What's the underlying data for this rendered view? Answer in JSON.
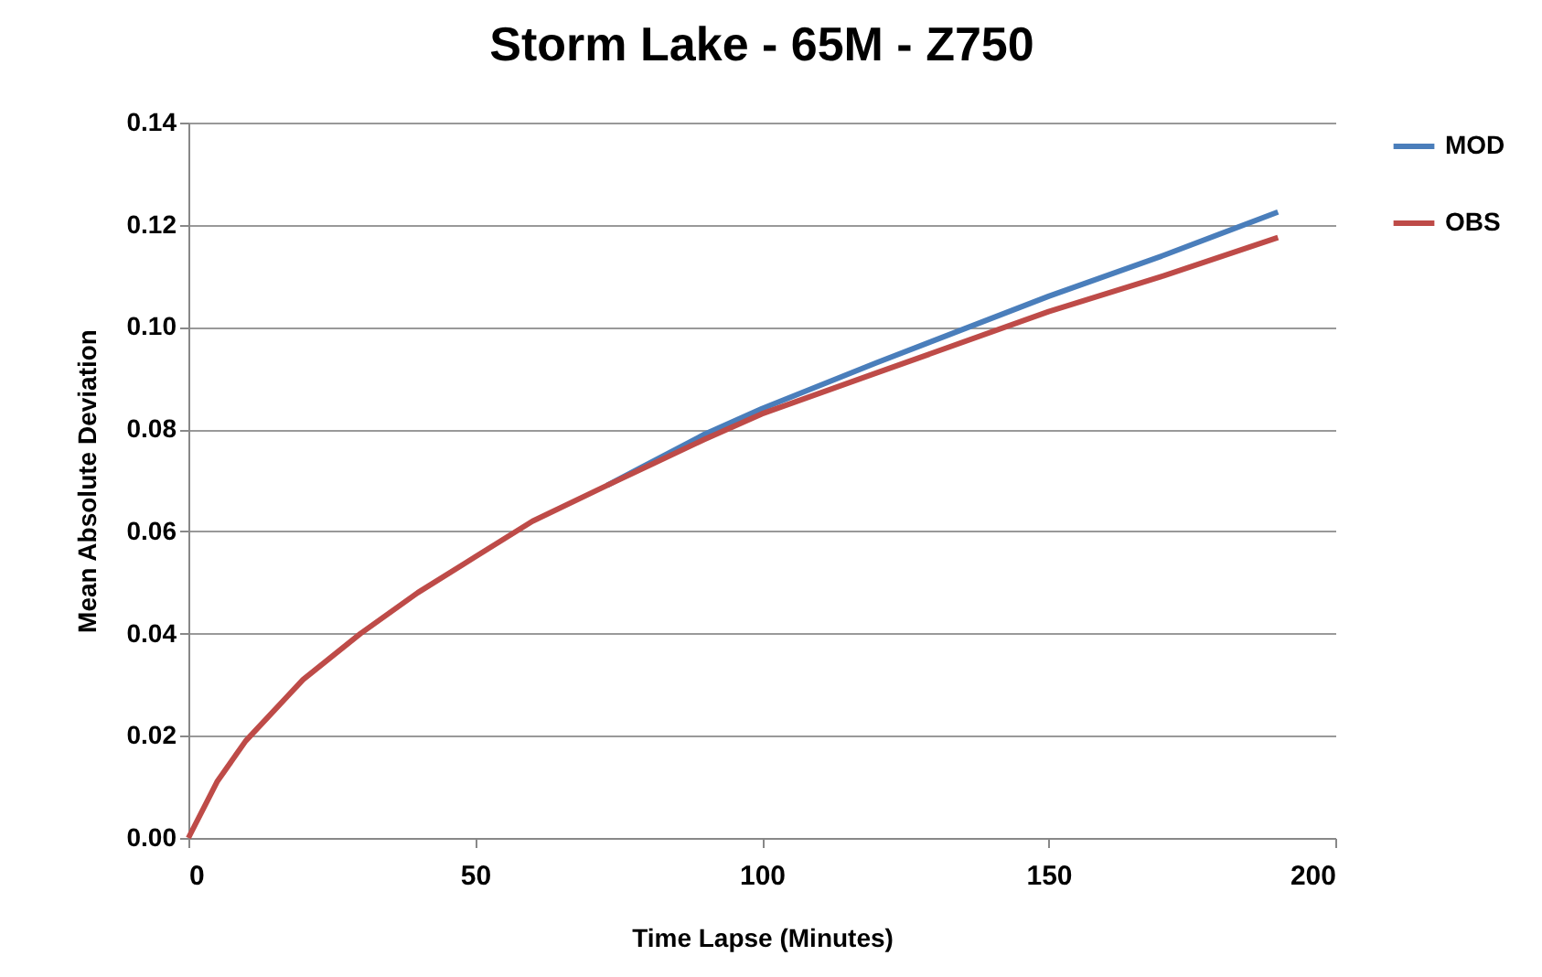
{
  "chart_data": {
    "type": "line",
    "title": "Storm Lake - 65M - Z750",
    "xlabel": "Time Lapse  (Minutes)",
    "ylabel": "Mean Absolute Deviation",
    "xlim": [
      0,
      200
    ],
    "xticks": [
      0,
      50,
      100,
      150,
      200
    ],
    "ylim": [
      0,
      0.14
    ],
    "yticks": [
      {
        "value": 0,
        "label": "0.00"
      },
      {
        "value": 0.02,
        "label": "0.02"
      },
      {
        "value": 0.04,
        "label": "0.04"
      },
      {
        "value": 0.06,
        "label": "0.06"
      },
      {
        "value": 0.08,
        "label": "0.08"
      },
      {
        "value": 0.1,
        "label": "0.10"
      },
      {
        "value": 0.12,
        "label": "0.12"
      },
      {
        "value": 0.14,
        "label": "0.14"
      }
    ],
    "grid": "y",
    "legend": "right",
    "marker": "none",
    "line_style": "solid",
    "series": [
      {
        "name": "MOD",
        "color": "#4a7ebb",
        "x": [
          73,
          90,
          100,
          120,
          150,
          170,
          190
        ],
        "values": [
          0.069,
          0.079,
          0.084,
          0.093,
          0.106,
          0.114,
          0.1225
        ]
      },
      {
        "name": "OBS",
        "color": "#be4b48",
        "x": [
          0,
          5,
          10,
          15,
          20,
          30,
          40,
          50,
          60,
          73,
          90,
          100,
          120,
          150,
          170,
          190
        ],
        "values": [
          0,
          0.011,
          0.019,
          0.025,
          0.031,
          0.04,
          0.048,
          0.055,
          0.062,
          0.069,
          0.078,
          0.083,
          0.091,
          0.103,
          0.11,
          0.1175
        ]
      }
    ]
  }
}
